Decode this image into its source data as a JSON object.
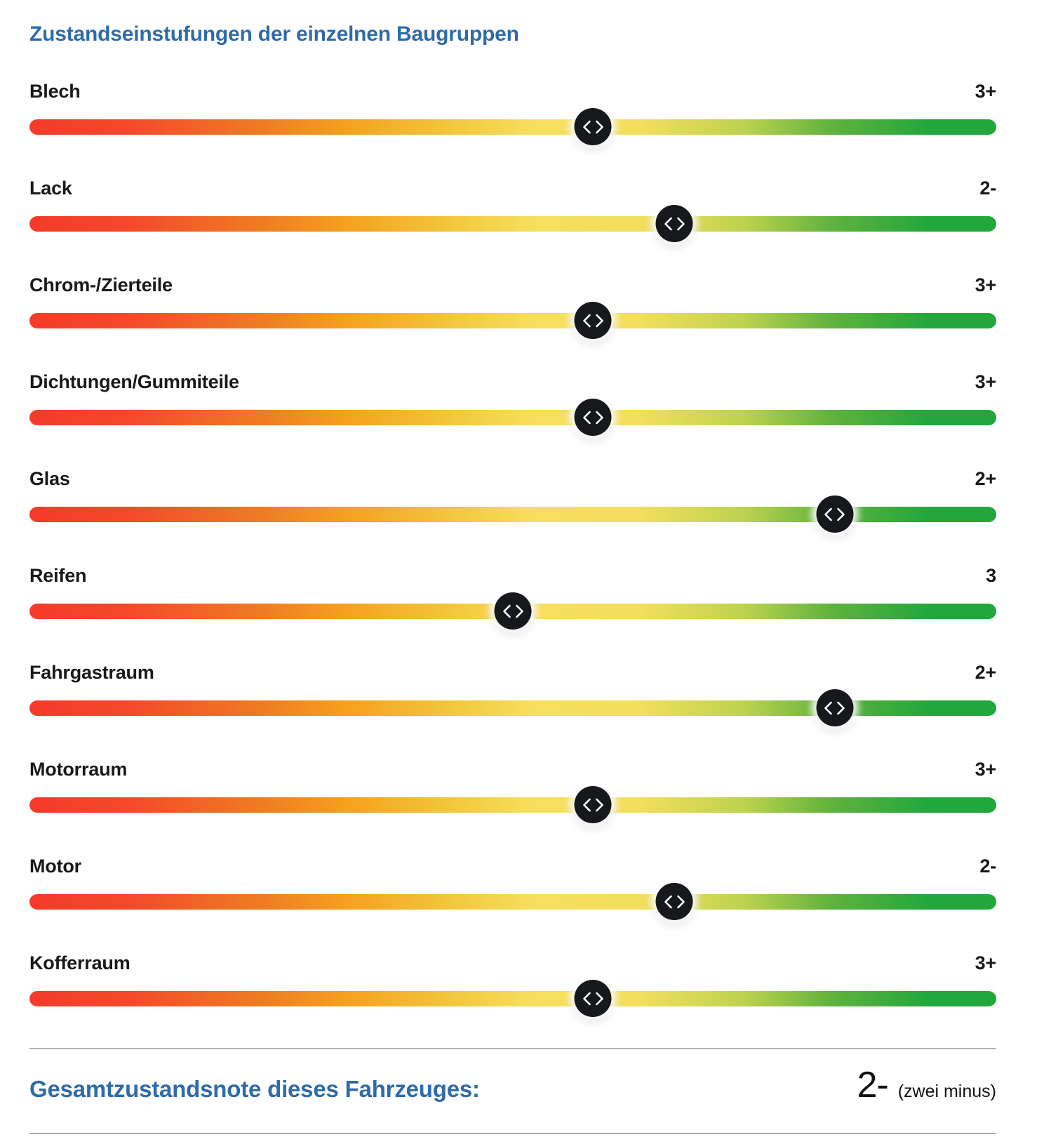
{
  "page": {
    "title": "Zustandseinstufungen der einzelnen Baugruppen"
  },
  "sliders": [
    {
      "label": "Blech",
      "rating": "3+",
      "position_pct": 58.3
    },
    {
      "label": "Lack",
      "rating": "2-",
      "position_pct": 66.7
    },
    {
      "label": "Chrom-/Zierteile",
      "rating": "3+",
      "position_pct": 58.3
    },
    {
      "label": "Dichtungen/Gummiteile",
      "rating": "3+",
      "position_pct": 58.3
    },
    {
      "label": "Glas",
      "rating": "2+",
      "position_pct": 83.3
    },
    {
      "label": "Reifen",
      "rating": "3",
      "position_pct": 50.0
    },
    {
      "label": "Fahrgastraum",
      "rating": "2+",
      "position_pct": 83.3
    },
    {
      "label": "Motorraum",
      "rating": "3+",
      "position_pct": 58.3
    },
    {
      "label": "Motor",
      "rating": "2-",
      "position_pct": 66.7
    },
    {
      "label": "Kofferraum",
      "rating": "3+",
      "position_pct": 58.3
    }
  ],
  "summary": {
    "heading": "Gesamtzustandsnote dieses Fahrzeuges:",
    "grade": "2-",
    "grade_text": "(zwei minus)"
  },
  "colors": {
    "heading_blue": "#2e6ba9",
    "label_black": "#191919",
    "handle_black": "#16181c",
    "track_red": "#f43b29",
    "track_orange": "#f5a120",
    "track_yellow": "#f6df5e",
    "track_green": "#22a73c",
    "divider_gray": "#b3b3b3"
  },
  "icons": {
    "handle": "drag-horizontal-chevrons-icon"
  }
}
